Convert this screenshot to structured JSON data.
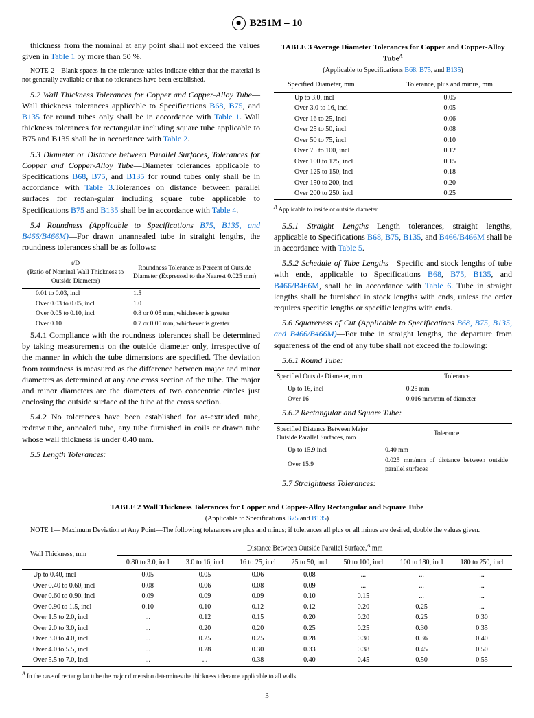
{
  "hdr": "B251M – 10",
  "c1": {
    "p1a": "thickness from the nominal at any point shall not exceed the values given in ",
    "p1b": " by more than 50 %.",
    "n2": "NOTE 2—Blank spaces in the tolerance tables indicate either that the material is not generally available or that no tolerances have been established.",
    "s52t": "5.2 Wall Thickness Tolerances for Copper and Copper-Alloy Tube",
    "s52a": "—Wall thickness tolerances applicable to Specifications ",
    "s52b": " for round tubes only shall be in accordance with ",
    "s52c": ". Wall thickness tolerances for rectangular including square tube applicable to B75 and B135 shall be in accordance with ",
    "s53t": "5.3 Diameter or Distance between Parallel Surfaces, Tolerances for Copper and Copper-Alloy Tube",
    "s53a": "—Diameter tolerances applicable to Specifications ",
    "s53b": " for round tubes only shall be in accordance with ",
    "s53c": ".Tolerances on distance between parallel surfaces for rectan-gular including square tube applicable to Specifications ",
    "s53d": " shall be in accordance with ",
    "s54t": "5.4 Roundness (Applicable to Specifications ",
    "s54a": "—For drawn unannealed tube in straight lengths, the roundness tolerances shall be as follows:",
    "rh1": "t/D",
    "rh1s": "(Ratio of Nominal Wall Thickness to Outside Diameter)",
    "rh2": "Roundness Tolerance as Percent of Outside Diameter (Expressed to the Nearest 0.025 mm)",
    "rr": [
      [
        "0.01 to 0.03, incl",
        "1.5"
      ],
      [
        "Over 0.03 to 0.05, incl",
        "1.0"
      ],
      [
        "Over 0.05 to 0.10, incl",
        "0.8 or 0.05 mm, whichever is greater"
      ],
      [
        "Over 0.10",
        "0.7 or 0.05 mm, whichever is greater"
      ]
    ],
    "s541": "5.4.1 Compliance with the roundness tolerances shall be determined by taking measurements on the outside diameter only, irrespective of the manner in which the tube dimensions are specified. The deviation from roundness is measured as the difference between major and minor diameters as determined at any one cross section of the tube. The major and minor diameters are the diameters of two concentric circles just enclosing the outside surface of the tube at the cross section.",
    "s542": "5.4.2 No tolerances have been established for as-extruded tube, redraw tube, annealed tube, any tube furnished in coils or drawn tube whose wall thickness is under 0.40 mm.",
    "s55": "5.5 Length Tolerances:"
  },
  "t3": {
    "title": "TABLE 3 Average Diameter Tolerances for Copper and Copper-Alloy Tube",
    "sub": "(Applicable to Specifications ",
    "h1": "Specified Diameter, mm",
    "h2": "Tolerance, plus and minus, mm",
    "rows": [
      [
        "Up to 3.0, incl",
        "0.05"
      ],
      [
        "Over 3.0 to 16, incl",
        "0.05"
      ],
      [
        "Over 16 to 25, incl",
        "0.06"
      ],
      [
        "Over 25 to 50, incl",
        "0.08"
      ],
      [
        "Over 50 to 75, incl",
        "0.10"
      ],
      [
        "Over 75 to 100, incl",
        "0.12"
      ],
      [
        "Over 100 to 125, incl",
        "0.15"
      ],
      [
        "Over 125 to 150, incl",
        "0.18"
      ],
      [
        "Over 150 to 200, incl",
        "0.20"
      ],
      [
        "Over 200 to 250, incl",
        "0.25"
      ]
    ],
    "foot": " Applicable to inside or outside diameter."
  },
  "c2": {
    "s551t": "5.5.1 Straight Lengths",
    "s551a": "—Length tolerances, straight lengths, applicable to Specifications ",
    "s551b": " shall be in accordance with ",
    "s552t": "5.5.2 Schedule of Tube Lengths",
    "s552a": "—Specific and stock lengths of tube with ends, applicable to Specifications ",
    "s552b": ", shall be in accordance with ",
    "s552c": ". Tube in straight lengths shall be furnished in stock lengths with ends, unless the order requires specific lengths or specific lengths with ends.",
    "s56t": "5.6 Squareness of Cut (Applicable to Specifications ",
    "s56a": "—For tube in straight lengths, the departure from squareness of the end of any tube shall not exceed the following:",
    "s561": "5.6.1 Round Tube:",
    "rt_h1": "Specified Outside Diameter, mm",
    "rt_h2": "Tolerance",
    "rt_r": [
      [
        "Up to 16, incl",
        "0.25 mm"
      ],
      [
        "Over 16",
        "0.016 mm/mm of diameter"
      ]
    ],
    "s562": "5.6.2 Rectangular and Square Tube:",
    "sq_h1": "Specified Distance Between Major Outside Parallel Surfaces, mm",
    "sq_h2": "Tolerance",
    "sq_r": [
      [
        "Up to 15.9 incl",
        "0.40 mm"
      ],
      [
        "Over 15.9",
        "0.025 mm/mm of distance between outside parallel surfaces"
      ]
    ],
    "s57": "5.7 Straightness Tolerances:"
  },
  "t2": {
    "title": "TABLE 2 Wall Thickness Tolerances for Copper and Copper-Alloy Rectangular and Square Tube",
    "sub": "(Applicable to Specifications ",
    "note": "NOTE 1— Maximum Deviation at Any Point—The following tolerances are plus and minus; if tolerances all plus or all minus are desired, double the values given.",
    "h0": "Wall Thickness, mm",
    "hspan": "Distance Between Outside Parallel Surface,",
    "cols": [
      "0.80 to 3.0, incl",
      "3.0 to 16, incl",
      "16 to 25, incl",
      "25 to 50, incl",
      "50 to 100, incl",
      "100 to 180, incl",
      "180 to 250, incl"
    ],
    "rows": [
      [
        "Up to 0.40, incl",
        "0.05",
        "0.05",
        "0.06",
        "0.08",
        "...",
        "...",
        "..."
      ],
      [
        "Over 0.40 to 0.60, incl",
        "0.08",
        "0.06",
        "0.08",
        "0.09",
        "...",
        "...",
        "..."
      ],
      [
        "Over 0.60 to 0.90, incl",
        "0.09",
        "0.09",
        "0.09",
        "0.10",
        "0.15",
        "...",
        "..."
      ],
      [
        "Over 0.90 to 1.5, incl",
        "0.10",
        "0.10",
        "0.12",
        "0.12",
        "0.20",
        "0.25",
        "..."
      ],
      [
        "Over 1.5 to 2.0, incl",
        "...",
        "0.12",
        "0.15",
        "0.20",
        "0.20",
        "0.25",
        "0.30"
      ],
      [
        "Over 2.0 to 3.0, incl",
        "...",
        "0.20",
        "0.20",
        "0.25",
        "0.25",
        "0.30",
        "0.35"
      ],
      [
        "Over 3.0 to 4.0, incl",
        "...",
        "0.25",
        "0.25",
        "0.28",
        "0.30",
        "0.36",
        "0.40"
      ],
      [
        "Over 4.0 to 5.5, incl",
        "...",
        "0.28",
        "0.30",
        "0.33",
        "0.38",
        "0.45",
        "0.50"
      ],
      [
        "Over 5.5 to 7.0, incl",
        "...",
        "...",
        "0.38",
        "0.40",
        "0.45",
        "0.50",
        "0.55"
      ]
    ],
    "foot": " In the case of rectangular tube the major dimension determines the thickness tolerance applicable to all walls."
  },
  "links": {
    "t1": "Table 1",
    "t2": "Table 2",
    "t3": "Table 3",
    "t4": "Table 4",
    "t5": "Table 5",
    "t6": "Table 6",
    "b68": "B68",
    "b75": "B75",
    "b135": "B135",
    "b466": "B466/B466M",
    "b75i": "B75, B135, and B466/B466M)",
    "b68i": "B68, B75, B135, and B466/B466M)"
  },
  "pg": "3"
}
